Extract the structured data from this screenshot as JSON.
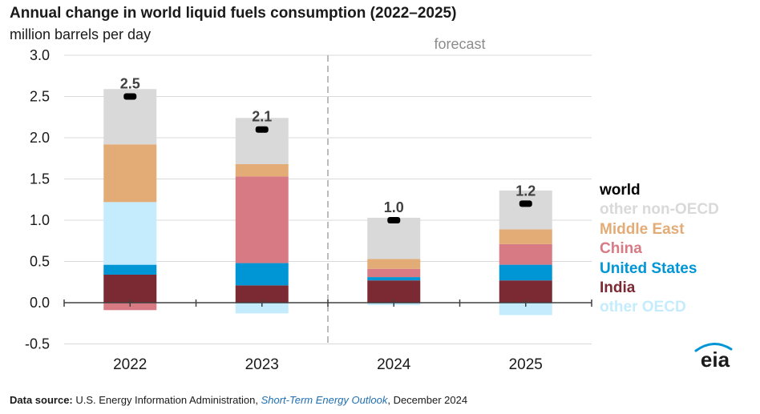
{
  "header": {
    "title": "Annual change in world liquid fuels consumption (2022–2025)",
    "subtitle": "million barrels per day"
  },
  "source": {
    "label": "Data source:",
    "text_before": " U.S. Energy Information Administration, ",
    "publication": "Short-Term Energy Outlook",
    "text_after": ", December 2024"
  },
  "logo": {
    "text": "eia"
  },
  "chart_data": {
    "type": "bar",
    "stacked": true,
    "categories": [
      "2022",
      "2023",
      "2024",
      "2025"
    ],
    "ylim": [
      -0.5,
      3.0
    ],
    "yticks": [
      -0.5,
      0.0,
      0.5,
      1.0,
      1.5,
      2.0,
      2.5,
      3.0
    ],
    "ytick_labels": [
      "-0.5",
      "0.0",
      "0.5",
      "1.0",
      "1.5",
      "2.0",
      "2.5",
      "3.0"
    ],
    "grid": true,
    "forecast_label": "forecast",
    "forecast_starts_at": "2024",
    "series": [
      {
        "name": "India",
        "color": "#7b2a34",
        "values": [
          0.34,
          0.21,
          0.27,
          0.27
        ]
      },
      {
        "name": "United States",
        "color": "#0096d6",
        "values": [
          0.12,
          0.27,
          0.04,
          0.19
        ]
      },
      {
        "name": "other OECD",
        "color": "#c4ecfd",
        "values": [
          0.76,
          -0.13,
          -0.03,
          -0.15
        ]
      },
      {
        "name": "China",
        "color": "#d77a84",
        "values": [
          -0.09,
          1.05,
          0.1,
          0.25
        ]
      },
      {
        "name": "Middle East",
        "color": "#e3ac76",
        "values": [
          0.7,
          0.15,
          0.12,
          0.18
        ]
      },
      {
        "name": "other non-OECD",
        "color": "#d9d9d9",
        "values": [
          0.67,
          0.56,
          0.5,
          0.47
        ]
      }
    ],
    "world": {
      "name": "world",
      "color": "#000000",
      "values": [
        2.5,
        2.1,
        1.0,
        1.2
      ],
      "labels": [
        "2.5",
        "2.1",
        "1.0",
        "1.2"
      ]
    },
    "legend": {
      "placement": "right",
      "entries": [
        {
          "name": "world",
          "color": "#000000"
        },
        {
          "name": "other non-OECD",
          "color": "#d9d9d9"
        },
        {
          "name": "Middle East",
          "color": "#e3ac76"
        },
        {
          "name": "China",
          "color": "#d77a84"
        },
        {
          "name": "United States",
          "color": "#0096d6"
        },
        {
          "name": "India",
          "color": "#7b2a34"
        },
        {
          "name": "other OECD",
          "color": "#c4ecfd"
        }
      ]
    }
  }
}
